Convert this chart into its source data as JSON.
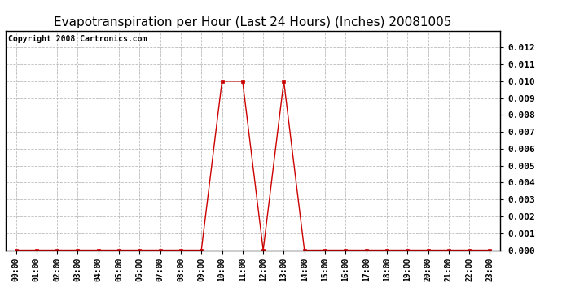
{
  "title": "Evapotranspiration per Hour (Last 24 Hours) (Inches) 20081005",
  "copyright_text": "Copyright 2008 Cartronics.com",
  "hours": [
    0,
    1,
    2,
    3,
    4,
    5,
    6,
    7,
    8,
    9,
    10,
    11,
    12,
    13,
    14,
    15,
    16,
    17,
    18,
    19,
    20,
    21,
    22,
    23
  ],
  "values": [
    0.0,
    0.0,
    0.0,
    0.0,
    0.0,
    0.0,
    0.0,
    0.0,
    0.0,
    0.0,
    0.01,
    0.01,
    0.0,
    0.01,
    0.0,
    0.0,
    0.0,
    0.0,
    0.0,
    0.0,
    0.0,
    0.0,
    0.0,
    0.0
  ],
  "xlabels": [
    "00:00",
    "01:00",
    "02:00",
    "03:00",
    "04:00",
    "05:00",
    "06:00",
    "07:00",
    "08:00",
    "09:00",
    "10:00",
    "11:00",
    "12:00",
    "13:00",
    "14:00",
    "15:00",
    "16:00",
    "17:00",
    "18:00",
    "19:00",
    "20:00",
    "21:00",
    "22:00",
    "23:00"
  ],
  "ylim": [
    0,
    0.013
  ],
  "yticks": [
    0.0,
    0.001,
    0.002,
    0.003,
    0.004,
    0.005,
    0.006,
    0.007,
    0.008,
    0.009,
    0.01,
    0.011,
    0.012
  ],
  "line_color": "#cc0000",
  "marker": "s",
  "marker_size": 3,
  "background_color": "#ffffff",
  "grid_color": "#bbbbbb",
  "title_fontsize": 11,
  "copyright_fontsize": 7,
  "tick_fontsize": 8,
  "x_tick_fontsize": 7
}
